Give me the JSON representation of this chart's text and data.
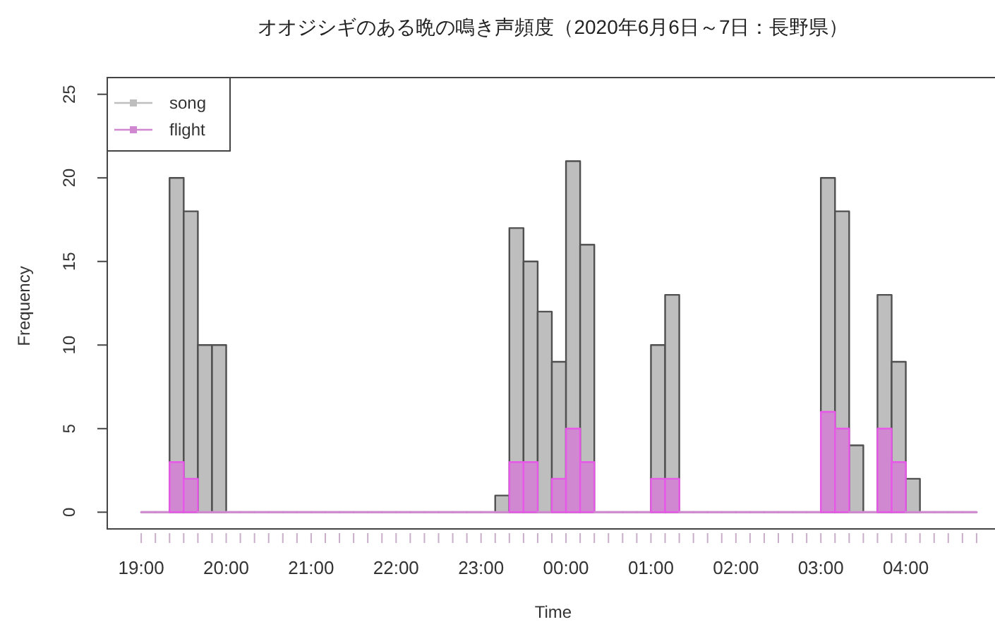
{
  "chart_data": {
    "type": "histogram",
    "title": "オオジシギのある晩の鳴き声頻度（2020年6月6日～7日：長野県）",
    "xlabel": "Time",
    "ylabel": "Frequency",
    "bins": [
      "2020-06-06T19:00",
      "2020-06-06T19:10",
      "2020-06-06T19:20",
      "2020-06-06T19:30",
      "2020-06-06T19:40",
      "2020-06-06T19:50",
      "2020-06-06T20:00",
      "2020-06-06T20:10",
      "2020-06-06T20:20",
      "2020-06-06T20:30",
      "2020-06-06T20:40",
      "2020-06-06T20:50",
      "2020-06-06T21:00",
      "2020-06-06T21:10",
      "2020-06-06T21:20",
      "2020-06-06T21:30",
      "2020-06-06T21:40",
      "2020-06-06T21:50",
      "2020-06-06T22:00",
      "2020-06-06T22:10",
      "2020-06-06T22:20",
      "2020-06-06T22:30",
      "2020-06-06T22:40",
      "2020-06-06T22:50",
      "2020-06-06T23:00",
      "2020-06-06T23:10",
      "2020-06-06T23:20",
      "2020-06-06T23:30",
      "2020-06-06T23:40",
      "2020-06-06T23:50",
      "2020-06-07T00:00",
      "2020-06-07T00:10",
      "2020-06-07T00:20",
      "2020-06-07T00:30",
      "2020-06-07T00:40",
      "2020-06-07T00:50",
      "2020-06-07T01:00",
      "2020-06-07T01:10",
      "2020-06-07T01:20",
      "2020-06-07T01:30",
      "2020-06-07T01:40",
      "2020-06-07T01:50",
      "2020-06-07T02:00",
      "2020-06-07T02:10",
      "2020-06-07T02:20",
      "2020-06-07T02:30",
      "2020-06-07T02:40",
      "2020-06-07T02:50",
      "2020-06-07T03:00",
      "2020-06-07T03:10",
      "2020-06-07T03:20",
      "2020-06-07T03:30",
      "2020-06-07T03:40",
      "2020-06-07T03:50",
      "2020-06-07T04:00",
      "2020-06-07T04:10",
      "2020-06-07T04:20",
      "2020-06-07T04:30",
      "2020-06-07T04:40",
      "2020-06-07T04:50"
    ],
    "series": [
      {
        "name": "song",
        "color": "#bebebe",
        "values": [
          0,
          0,
          20,
          18,
          10,
          10,
          0,
          0,
          0,
          0,
          0,
          0,
          0,
          0,
          0,
          0,
          0,
          0,
          0,
          0,
          0,
          0,
          0,
          0,
          0,
          1,
          17,
          15,
          12,
          9,
          21,
          16,
          0,
          0,
          0,
          0,
          10,
          13,
          0,
          0,
          0,
          0,
          0,
          0,
          0,
          0,
          0,
          0,
          20,
          18,
          4,
          0,
          13,
          9,
          2,
          0,
          0,
          0,
          0
        ]
      },
      {
        "name": "flight",
        "color": "#d088d0",
        "values": [
          0,
          0,
          3,
          2,
          0,
          0,
          0,
          0,
          0,
          0,
          0,
          0,
          0,
          0,
          0,
          0,
          0,
          0,
          0,
          0,
          0,
          0,
          0,
          0,
          0,
          0,
          3,
          3,
          0,
          2,
          5,
          3,
          0,
          0,
          0,
          0,
          2,
          2,
          0,
          0,
          0,
          0,
          0,
          0,
          0,
          0,
          0,
          0,
          6,
          5,
          0,
          0,
          5,
          3,
          0,
          0,
          0,
          0,
          0
        ]
      }
    ],
    "xlim": [
      "2020-06-06T18:36",
      "2020-06-07T05:03"
    ],
    "ylim": [
      -1,
      26
    ],
    "xticks": [
      {
        "value": "2020-06-06T19:00",
        "label": "19:00"
      },
      {
        "value": "2020-06-06T19:10",
        "label": null
      },
      {
        "value": "2020-06-06T19:20",
        "label": null
      },
      {
        "value": "2020-06-06T19:30",
        "label": null
      },
      {
        "value": "2020-06-06T19:40",
        "label": null
      },
      {
        "value": "2020-06-06T19:50",
        "label": null
      },
      {
        "value": "2020-06-06T20:00",
        "label": "20:00"
      },
      {
        "value": "2020-06-06T20:10",
        "label": null
      },
      {
        "value": "2020-06-06T20:20",
        "label": null
      },
      {
        "value": "2020-06-06T20:30",
        "label": null
      },
      {
        "value": "2020-06-06T20:40",
        "label": null
      },
      {
        "value": "2020-06-06T20:50",
        "label": null
      },
      {
        "value": "2020-06-06T21:00",
        "label": "21:00"
      },
      {
        "value": "2020-06-06T21:10",
        "label": null
      },
      {
        "value": "2020-06-06T21:20",
        "label": null
      },
      {
        "value": "2020-06-06T21:30",
        "label": null
      },
      {
        "value": "2020-06-06T21:40",
        "label": null
      },
      {
        "value": "2020-06-06T21:50",
        "label": null
      },
      {
        "value": "2020-06-06T22:00",
        "label": "22:00"
      },
      {
        "value": "2020-06-06T22:10",
        "label": null
      },
      {
        "value": "2020-06-06T22:20",
        "label": null
      },
      {
        "value": "2020-06-06T22:30",
        "label": null
      },
      {
        "value": "2020-06-06T22:40",
        "label": null
      },
      {
        "value": "2020-06-06T22:50",
        "label": null
      },
      {
        "value": "2020-06-06T23:00",
        "label": "23:00"
      },
      {
        "value": "2020-06-06T23:10",
        "label": null
      },
      {
        "value": "2020-06-06T23:20",
        "label": null
      },
      {
        "value": "2020-06-06T23:30",
        "label": null
      },
      {
        "value": "2020-06-06T23:40",
        "label": null
      },
      {
        "value": "2020-06-06T23:50",
        "label": null
      },
      {
        "value": "2020-06-07T00:00",
        "label": "00:00"
      },
      {
        "value": "2020-06-07T00:10",
        "label": null
      },
      {
        "value": "2020-06-07T00:20",
        "label": null
      },
      {
        "value": "2020-06-07T00:30",
        "label": null
      },
      {
        "value": "2020-06-07T00:40",
        "label": null
      },
      {
        "value": "2020-06-07T00:50",
        "label": null
      },
      {
        "value": "2020-06-07T01:00",
        "label": "01:00"
      },
      {
        "value": "2020-06-07T01:10",
        "label": null
      },
      {
        "value": "2020-06-07T01:20",
        "label": null
      },
      {
        "value": "2020-06-07T01:30",
        "label": null
      },
      {
        "value": "2020-06-07T01:40",
        "label": null
      },
      {
        "value": "2020-06-07T01:50",
        "label": null
      },
      {
        "value": "2020-06-07T02:00",
        "label": "02:00"
      },
      {
        "value": "2020-06-07T02:10",
        "label": null
      },
      {
        "value": "2020-06-07T02:20",
        "label": null
      },
      {
        "value": "2020-06-07T02:30",
        "label": null
      },
      {
        "value": "2020-06-07T02:40",
        "label": null
      },
      {
        "value": "2020-06-07T02:50",
        "label": null
      },
      {
        "value": "2020-06-07T03:00",
        "label": "03:00"
      },
      {
        "value": "2020-06-07T03:10",
        "label": null
      },
      {
        "value": "2020-06-07T03:20",
        "label": null
      },
      {
        "value": "2020-06-07T03:30",
        "label": null
      },
      {
        "value": "2020-06-07T03:40",
        "label": null
      },
      {
        "value": "2020-06-07T03:50",
        "label": null
      },
      {
        "value": "2020-06-07T04:00",
        "label": "04:00"
      },
      {
        "value": "2020-06-07T04:10",
        "label": null
      },
      {
        "value": "2020-06-07T04:20",
        "label": null
      },
      {
        "value": "2020-06-07T04:30",
        "label": null
      },
      {
        "value": "2020-06-07T04:40",
        "label": null
      },
      {
        "value": "2020-06-07T04:50",
        "label": null
      }
    ],
    "yticks": [
      0,
      5,
      10,
      15,
      20,
      25
    ],
    "legend": "top left"
  }
}
